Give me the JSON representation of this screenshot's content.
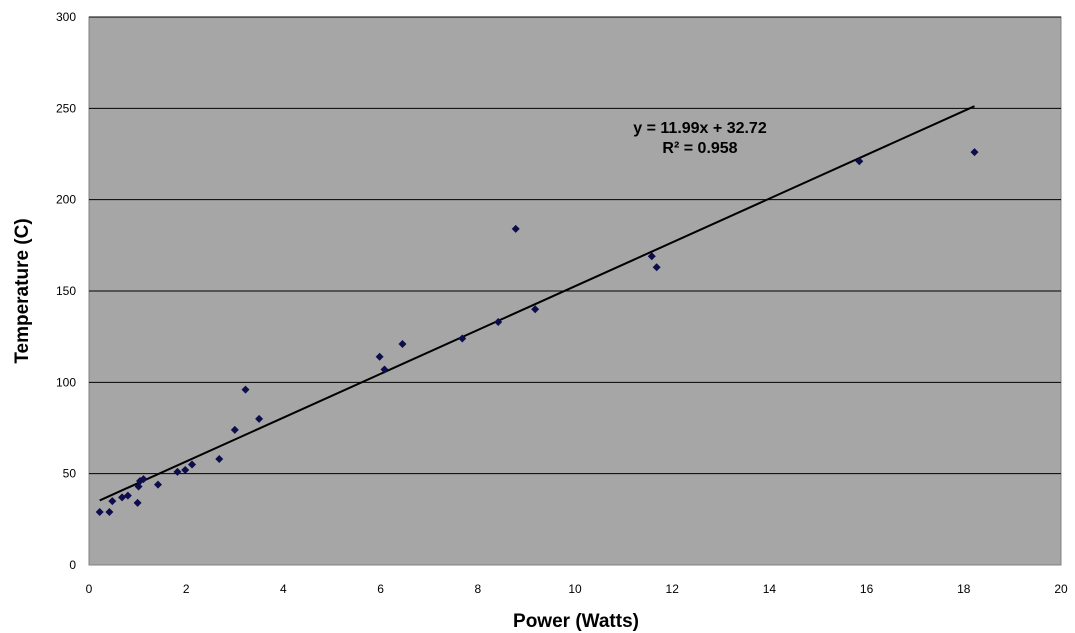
{
  "chart_data": {
    "type": "scatter",
    "title": "",
    "xlabel": "Power (Watts)",
    "ylabel": "Temperature (C)",
    "xlim": [
      0,
      20
    ],
    "ylim": [
      0,
      300
    ],
    "xticks": [
      "0",
      "2",
      "4",
      "6",
      "8",
      "10",
      "12",
      "14",
      "16",
      "18",
      "20"
    ],
    "yticks": [
      "0",
      "50",
      "100",
      "150",
      "200",
      "250",
      "300"
    ],
    "grid": "horizontal",
    "plot_background": "#a6a6a6",
    "marker_color": "#0d0d4d",
    "points": [
      {
        "x": 0.22,
        "y": 29
      },
      {
        "x": 0.42,
        "y": 29
      },
      {
        "x": 0.48,
        "y": 35
      },
      {
        "x": 0.68,
        "y": 37
      },
      {
        "x": 0.8,
        "y": 38
      },
      {
        "x": 1.0,
        "y": 34
      },
      {
        "x": 1.02,
        "y": 43
      },
      {
        "x": 1.05,
        "y": 46
      },
      {
        "x": 1.12,
        "y": 47
      },
      {
        "x": 1.42,
        "y": 44
      },
      {
        "x": 1.82,
        "y": 51
      },
      {
        "x": 1.98,
        "y": 52
      },
      {
        "x": 2.12,
        "y": 55
      },
      {
        "x": 2.68,
        "y": 58
      },
      {
        "x": 3.0,
        "y": 74
      },
      {
        "x": 3.22,
        "y": 96
      },
      {
        "x": 3.5,
        "y": 80
      },
      {
        "x": 5.98,
        "y": 114
      },
      {
        "x": 6.08,
        "y": 107
      },
      {
        "x": 6.45,
        "y": 121
      },
      {
        "x": 7.68,
        "y": 124
      },
      {
        "x": 8.42,
        "y": 133
      },
      {
        "x": 8.78,
        "y": 184
      },
      {
        "x": 9.18,
        "y": 140
      },
      {
        "x": 11.58,
        "y": 169
      },
      {
        "x": 11.68,
        "y": 163
      },
      {
        "x": 15.85,
        "y": 221
      },
      {
        "x": 18.22,
        "y": 226
      }
    ],
    "trendline": {
      "slope": 11.99,
      "intercept": 32.72,
      "x_range": [
        0.22,
        18.22
      ],
      "equation": "y = 11.99x + 32.72",
      "r_squared": "R² = 0.958"
    }
  }
}
